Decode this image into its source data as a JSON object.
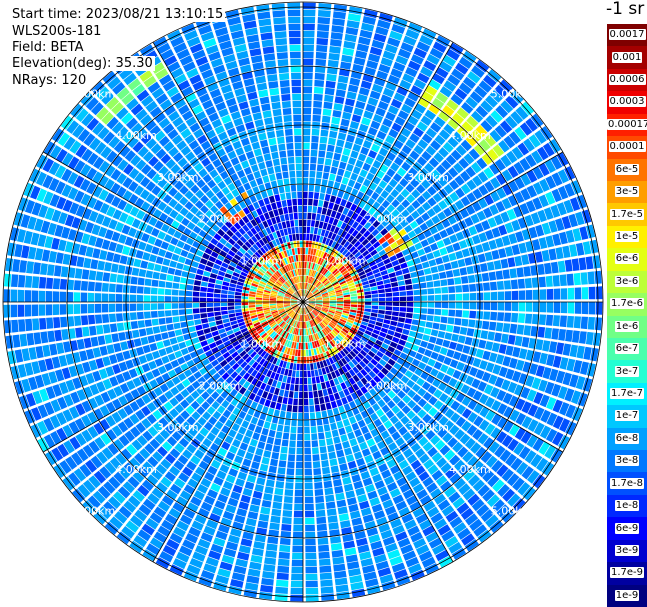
{
  "header": {
    "start_time": "Start time: 2023/08/21 13:10:15",
    "instrument": "WLS200s-181",
    "field": "Field: BETA",
    "elevation": "Elevation(deg): 35.30",
    "nrays": "NRays: 120"
  },
  "colorbar": {
    "title": "-1 sr",
    "labels": [
      "0.0017",
      "0.001",
      "0.0006",
      "0.0003",
      "0.00017",
      "0.0001",
      "6e-5",
      "3e-5",
      "1.7e-5",
      "1e-5",
      "6e-6",
      "3e-6",
      "1.7e-6",
      "1e-6",
      "6e-7",
      "3e-7",
      "1.7e-7",
      "1e-7",
      "6e-8",
      "3e-8",
      "1.7e-8",
      "1e-8",
      "6e-9",
      "3e-9",
      "1.7e-9",
      "1e-9"
    ],
    "colors": [
      "#7f0000",
      "#a40000",
      "#cc0000",
      "#f00000",
      "#ff2000",
      "#ff4a00",
      "#ff7400",
      "#ff9e00",
      "#ffc800",
      "#fff000",
      "#e4ff13",
      "#bdff39",
      "#97ff60",
      "#70ff86",
      "#4affad",
      "#23ffd3",
      "#00f0ff",
      "#00c8ff",
      "#00a0ff",
      "#0078ff",
      "#0050ff",
      "#0028ff",
      "#0000ff",
      "#0000d0",
      "#0000a0",
      "#000080"
    ]
  },
  "chart_data": {
    "type": "heatmap",
    "projection": "polar",
    "range_rings_km": [
      1.0,
      2.0,
      3.0,
      4.0,
      5.0
    ],
    "range_ring_labels": [
      "1.00km",
      "2.00km",
      "3.00km",
      "4.00km",
      "5.00km"
    ],
    "rays": 120,
    "field": "BETA",
    "color_scale": "log",
    "value_range": [
      1e-09,
      0.0017
    ]
  }
}
